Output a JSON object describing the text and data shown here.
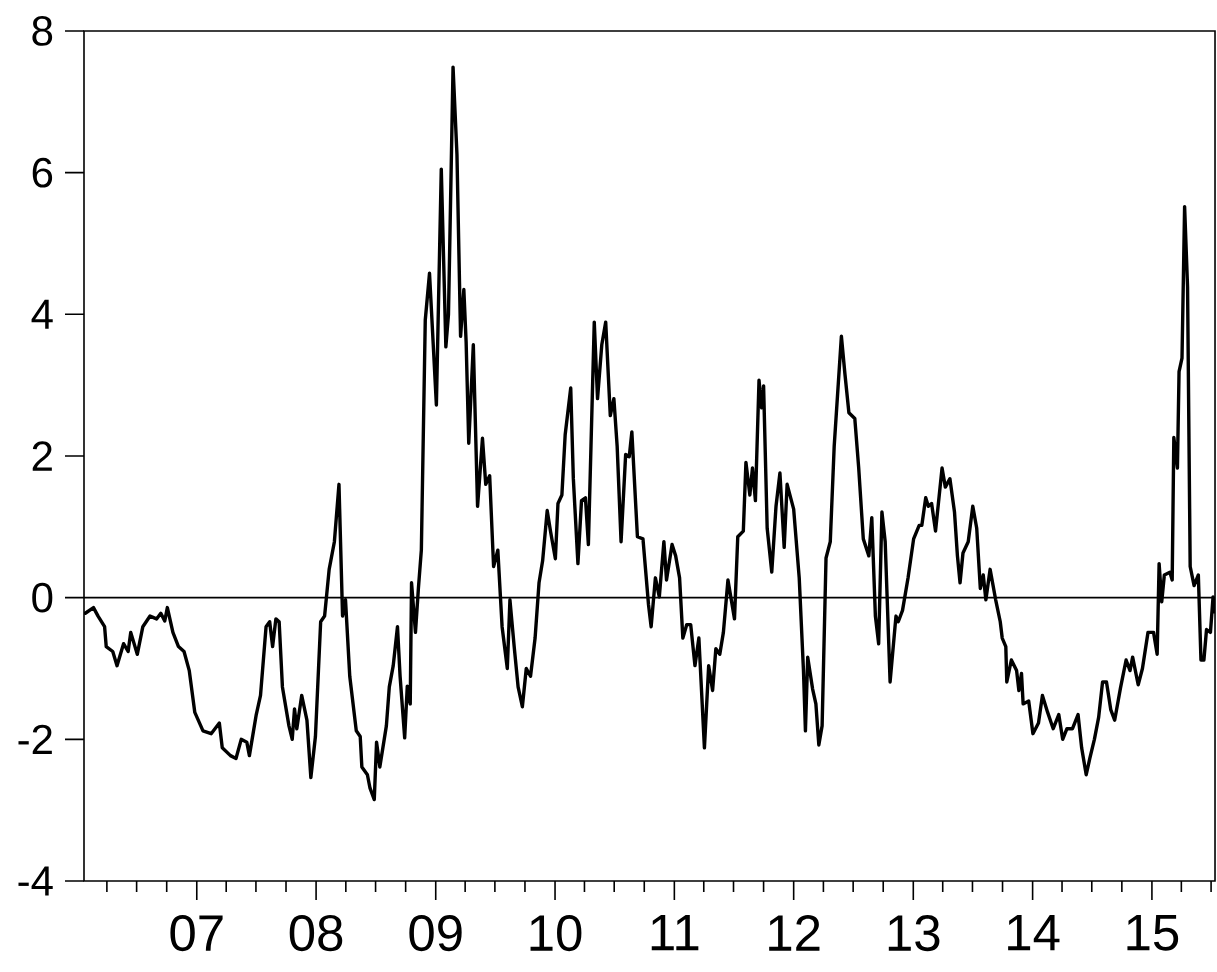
{
  "chart_data": {
    "type": "line",
    "x": [
      "2006-01-25",
      "2006-02-19",
      "2006-03-05",
      "2006-03-25",
      "2006-03-30",
      "2006-04-19",
      "2006-05-02",
      "2006-05-22",
      "2006-06-05",
      "2006-06-13",
      "2006-07-03",
      "2006-07-20",
      "2006-08-11",
      "2006-08-31",
      "2006-09-13",
      "2006-09-25",
      "2006-10-03",
      "2006-10-20",
      "2006-11-06",
      "2006-11-23",
      "2006-12-09",
      "2006-12-26",
      "2007-01-20",
      "2007-02-14",
      "2007-03-11",
      "2007-03-20",
      "2007-04-14",
      "2007-05-01",
      "2007-05-17",
      "2007-06-03",
      "2007-06-11",
      "2007-07-02",
      "2007-07-15",
      "2007-08-01",
      "2007-08-12",
      "2007-08-21",
      "2007-08-31",
      "2007-09-10",
      "2007-09-20",
      "2007-10-10",
      "2007-10-20",
      "2007-10-27",
      "2007-11-03",
      "2007-11-18",
      "2007-12-04",
      "2007-12-16",
      "2007-12-30",
      "2008-01-15",
      "2008-01-27",
      "2008-02-10",
      "2008-02-26",
      "2008-03-11",
      "2008-03-22",
      "2008-03-31",
      "2008-04-13",
      "2008-05-03",
      "2008-05-15",
      "2008-05-20",
      "2008-06-06",
      "2008-06-14",
      "2008-06-27",
      "2008-07-04",
      "2008-07-14",
      "2008-08-03",
      "2008-08-12",
      "2008-08-24",
      "2008-09-06",
      "2008-09-14",
      "2008-09-28",
      "2008-10-06",
      "2008-10-15",
      "2008-10-19",
      "2008-10-31",
      "2008-11-09",
      "2008-11-18",
      "2008-11-30",
      "2008-12-13",
      "2009-01-03",
      "2009-01-18",
      "2009-02-01",
      "2009-02-09",
      "2009-02-23",
      "2009-03-07",
      "2009-03-18",
      "2009-03-28",
      "2009-04-04",
      "2009-04-12",
      "2009-04-26",
      "2009-05-09",
      "2009-05-24",
      "2009-06-03",
      "2009-06-15",
      "2009-06-27",
      "2009-07-10",
      "2009-07-23",
      "2009-08-08",
      "2009-08-16",
      "2009-08-29",
      "2009-09-10",
      "2009-09-23",
      "2009-10-05",
      "2009-10-18",
      "2009-11-01",
      "2009-11-13",
      "2009-11-24",
      "2009-12-08",
      "2009-12-18",
      "2010-01-02",
      "2010-01-10",
      "2010-01-22",
      "2010-02-01",
      "2010-02-18",
      "2010-02-26",
      "2010-03-12",
      "2010-03-23",
      "2010-04-04",
      "2010-04-13",
      "2010-04-21",
      "2010-05-01",
      "2010-05-11",
      "2010-05-24",
      "2010-06-05",
      "2010-06-19",
      "2010-06-30",
      "2010-07-10",
      "2010-07-22",
      "2010-08-05",
      "2010-08-16",
      "2010-08-24",
      "2010-09-10",
      "2010-09-27",
      "2010-10-14",
      "2010-10-22",
      "2010-11-04",
      "2010-11-16",
      "2010-11-30",
      "2010-12-08",
      "2010-12-25",
      "2011-01-05",
      "2011-01-17",
      "2011-01-27",
      "2011-02-08",
      "2011-02-20",
      "2011-03-05",
      "2011-03-17",
      "2011-04-03",
      "2011-04-16",
      "2011-04-28",
      "2011-05-08",
      "2011-05-20",
      "2011-05-31",
      "2011-06-14",
      "2011-07-04",
      "2011-07-14",
      "2011-07-31",
      "2011-08-08",
      "2011-08-20",
      "2011-08-28",
      "2011-09-06",
      "2011-09-17",
      "2011-09-25",
      "2011-10-01",
      "2011-10-12",
      "2011-10-26",
      "2011-11-08",
      "2011-11-20",
      "2011-12-03",
      "2011-12-12",
      "2012-01-01",
      "2012-01-18",
      "2012-01-31",
      "2012-02-06",
      "2012-02-13",
      "2012-02-28",
      "2012-03-09",
      "2012-03-18",
      "2012-03-28",
      "2012-04-09",
      "2012-04-22",
      "2012-05-04",
      "2012-05-26",
      "2012-06-06",
      "2012-06-18",
      "2012-07-06",
      "2012-07-18",
      "2012-08-01",
      "2012-08-18",
      "2012-08-27",
      "2012-09-07",
      "2012-09-17",
      "2012-09-27",
      "2012-10-07",
      "2012-10-22",
      "2012-11-09",
      "2012-11-16",
      "2012-11-29",
      "2012-12-16",
      "2013-01-02",
      "2013-01-19",
      "2013-01-27",
      "2013-02-08",
      "2013-02-16",
      "2013-02-26",
      "2013-03-10",
      "2013-03-30",
      "2013-04-09",
      "2013-04-23",
      "2013-05-07",
      "2013-05-16",
      "2013-05-24",
      "2013-06-02",
      "2013-06-18",
      "2013-07-02",
      "2013-07-14",
      "2013-07-25",
      "2013-08-03",
      "2013-08-11",
      "2013-08-24",
      "2013-09-10",
      "2013-09-24",
      "2013-09-30",
      "2013-10-11",
      "2013-10-14",
      "2013-10-28",
      "2013-11-13",
      "2013-11-20",
      "2013-11-28",
      "2013-12-03",
      "2013-12-20",
      "2014-01-02",
      "2014-01-19",
      "2014-01-31",
      "2014-02-16",
      "2014-03-05",
      "2014-03-22",
      "2014-04-03",
      "2014-04-16",
      "2014-05-03",
      "2014-05-20",
      "2014-05-31",
      "2014-06-14",
      "2014-06-25",
      "2014-07-09",
      "2014-07-22",
      "2014-08-03",
      "2014-08-15",
      "2014-08-28",
      "2014-09-09",
      "2014-09-27",
      "2014-10-14",
      "2014-10-26",
      "2014-11-03",
      "2014-11-20",
      "2014-12-03",
      "2014-12-20",
      "2015-01-06",
      "2015-01-17",
      "2015-01-23",
      "2015-01-31",
      "2015-02-08",
      "2015-02-25",
      "2015-03-04",
      "2015-03-09",
      "2015-03-20",
      "2015-03-25",
      "2015-04-03",
      "2015-04-11",
      "2015-04-20",
      "2015-04-28",
      "2015-05-10",
      "2015-05-23",
      "2015-05-31",
      "2015-06-09",
      "2015-06-17",
      "2015-06-29",
      "2015-07-07",
      "2015-07-12"
    ],
    "series": [
      {
        "color": "#000000",
        "values": [
          -0.22,
          -0.14,
          -0.26,
          -0.41,
          -0.69,
          -0.76,
          -0.96,
          -0.65,
          -0.76,
          -0.49,
          -0.8,
          -0.41,
          -0.26,
          -0.3,
          -0.22,
          -0.33,
          -0.14,
          -0.49,
          -0.69,
          -0.76,
          -1.03,
          -1.62,
          -1.88,
          -1.92,
          -1.77,
          -2.12,
          -2.23,
          -2.27,
          -2.0,
          -2.04,
          -2.23,
          -1.65,
          -1.38,
          -0.41,
          -0.34,
          -0.69,
          -0.3,
          -0.34,
          -1.26,
          -1.81,
          -2.0,
          -1.57,
          -1.85,
          -1.38,
          -1.73,
          -2.54,
          -1.96,
          -0.34,
          -0.26,
          0.4,
          0.79,
          1.6,
          -0.26,
          -0.03,
          -1.11,
          -1.88,
          -1.96,
          -2.39,
          -2.5,
          -2.69,
          -2.85,
          -2.04,
          -2.39,
          -1.81,
          -1.26,
          -0.96,
          -0.41,
          -1.11,
          -1.98,
          -1.25,
          -1.5,
          0.21,
          -0.49,
          0.13,
          0.67,
          3.92,
          4.58,
          2.72,
          6.05,
          3.54,
          4.0,
          7.49,
          6.25,
          3.69,
          4.35,
          3.61,
          2.18,
          3.57,
          1.29,
          2.25,
          1.6,
          1.72,
          0.44,
          0.67,
          -0.41,
          -1.0,
          -0.03,
          -0.69,
          -1.26,
          -1.54,
          -1.0,
          -1.11,
          -0.57,
          0.21,
          0.52,
          1.23,
          0.94,
          0.55,
          1.33,
          1.45,
          2.3,
          2.96,
          1.68,
          0.48,
          1.37,
          1.41,
          0.75,
          2.14,
          3.89,
          2.81,
          3.57,
          3.89,
          2.57,
          2.81,
          2.14,
          0.79,
          2.02,
          1.99,
          2.34,
          0.86,
          0.83,
          -0.1,
          -0.41,
          0.28,
          0.01,
          0.79,
          0.25,
          0.75,
          0.59,
          0.28,
          -0.57,
          -0.38,
          -0.38,
          -0.96,
          -0.57,
          -2.12,
          -0.96,
          -1.31,
          -0.72,
          -0.8,
          -0.49,
          0.25,
          -0.3,
          0.86,
          0.94,
          1.91,
          1.45,
          1.83,
          1.37,
          3.07,
          2.68,
          2.99,
          0.98,
          0.36,
          1.29,
          1.76,
          0.71,
          1.6,
          1.25,
          0.28,
          -1.03,
          -1.88,
          -0.84,
          -1.29,
          -1.5,
          -2.08,
          -1.81,
          0.56,
          0.79,
          2.14,
          3.69,
          3.15,
          2.61,
          2.53,
          1.83,
          0.83,
          0.59,
          1.13,
          -0.26,
          -0.65,
          1.21,
          0.79,
          -1.19,
          -0.26,
          -0.34,
          -0.18,
          0.28,
          0.83,
          1.02,
          1.02,
          1.41,
          1.29,
          1.33,
          0.94,
          1.83,
          1.56,
          1.68,
          1.21,
          0.59,
          0.21,
          0.63,
          0.79,
          1.29,
          0.98,
          0.13,
          0.32,
          -0.03,
          0.4,
          -0.03,
          -0.34,
          -0.57,
          -0.69,
          -1.19,
          -0.88,
          -1.03,
          -1.31,
          -1.07,
          -1.5,
          -1.46,
          -1.92,
          -1.77,
          -1.38,
          -1.62,
          -1.85,
          -1.65,
          -2.0,
          -1.85,
          -1.85,
          -1.65,
          -2.12,
          -2.5,
          -2.27,
          -2.0,
          -1.69,
          -1.19,
          -1.19,
          -1.58,
          -1.73,
          -1.27,
          -0.88,
          -1.03,
          -0.84,
          -1.23,
          -1.0,
          -0.49,
          -0.49,
          -0.8,
          0.48,
          -0.06,
          0.32,
          0.36,
          0.25,
          2.26,
          1.83,
          3.19,
          3.38,
          5.52,
          4.39,
          0.44,
          0.17,
          0.32,
          -0.88,
          -0.88,
          -0.45,
          -0.49,
          0.01,
          -0.2
        ]
      }
    ],
    "xlim": [
      "2006-01-21",
      "2015-07-13"
    ],
    "ylim": [
      -4,
      8
    ],
    "xticks": [
      {
        "value": "2006-04-01",
        "label": null
      },
      {
        "value": "2006-07-01",
        "label": null
      },
      {
        "value": "2006-10-01",
        "label": null
      },
      {
        "value": "2007-01-01",
        "label": "07"
      },
      {
        "value": "2007-04-01",
        "label": null
      },
      {
        "value": "2007-07-01",
        "label": null
      },
      {
        "value": "2007-10-01",
        "label": null
      },
      {
        "value": "2008-01-01",
        "label": "08"
      },
      {
        "value": "2008-04-01",
        "label": null
      },
      {
        "value": "2008-07-01",
        "label": null
      },
      {
        "value": "2008-10-01",
        "label": null
      },
      {
        "value": "2009-01-01",
        "label": "09"
      },
      {
        "value": "2009-04-01",
        "label": null
      },
      {
        "value": "2009-07-01",
        "label": null
      },
      {
        "value": "2009-10-01",
        "label": null
      },
      {
        "value": "2010-01-01",
        "label": "10"
      },
      {
        "value": "2010-04-01",
        "label": null
      },
      {
        "value": "2010-07-01",
        "label": null
      },
      {
        "value": "2010-10-01",
        "label": null
      },
      {
        "value": "2011-01-01",
        "label": "11"
      },
      {
        "value": "2011-04-01",
        "label": null
      },
      {
        "value": "2011-07-01",
        "label": null
      },
      {
        "value": "2011-10-01",
        "label": null
      },
      {
        "value": "2012-01-01",
        "label": "12"
      },
      {
        "value": "2012-04-01",
        "label": null
      },
      {
        "value": "2012-07-01",
        "label": null
      },
      {
        "value": "2012-10-01",
        "label": null
      },
      {
        "value": "2013-01-01",
        "label": "13"
      },
      {
        "value": "2013-04-01",
        "label": null
      },
      {
        "value": "2013-07-01",
        "label": null
      },
      {
        "value": "2013-10-01",
        "label": null
      },
      {
        "value": "2014-01-01",
        "label": "14"
      },
      {
        "value": "2014-04-01",
        "label": null
      },
      {
        "value": "2014-07-01",
        "label": null
      },
      {
        "value": "2014-10-01",
        "label": null
      },
      {
        "value": "2015-01-01",
        "label": "15"
      },
      {
        "value": "2015-04-01",
        "label": null
      },
      {
        "value": "2015-07-01",
        "label": null
      }
    ],
    "yticks": [
      -4,
      -2,
      0,
      2,
      4,
      6,
      8
    ],
    "ref_lines": [
      {
        "axis": "y",
        "value": 0,
        "color": "#000000"
      }
    ],
    "line_style": "solid"
  }
}
